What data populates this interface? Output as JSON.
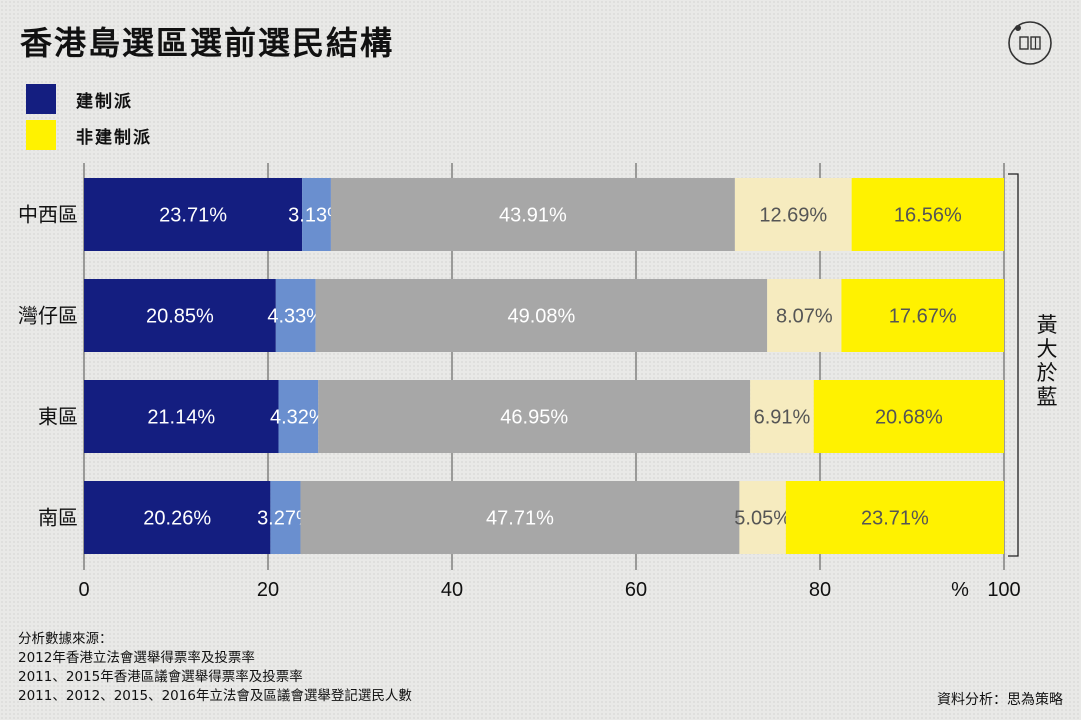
{
  "title": "香港島選區選前選民結構",
  "legend": [
    {
      "label": "建制派",
      "color": "#141e80"
    },
    {
      "label": "非建制派",
      "color": "#fff200"
    }
  ],
  "bracket_label": "黃大於藍",
  "sources": {
    "heading": "分析數據來源：",
    "lines": [
      "2012年香港立法會選舉得票率及投票率",
      "2011、2015年香港區議會選舉得票率及投票率",
      "2011、2012、2015、2016年立法會及區議會選舉登記選民人數"
    ]
  },
  "credit": "資料分析：思為策略",
  "chart_data": {
    "type": "bar",
    "orientation": "horizontal",
    "stacked": true,
    "title": "香港島選區選前選民結構",
    "xlabel": "%",
    "xlim": [
      0,
      100
    ],
    "xticks": [
      0,
      20,
      40,
      60,
      80,
      100
    ],
    "grid": true,
    "categories": [
      "中西區",
      "灣仔區",
      "東區",
      "南區"
    ],
    "series": [
      {
        "color": "#141e80",
        "label_color": "#ffffff",
        "values": [
          23.71,
          20.85,
          21.14,
          20.26
        ],
        "labels": [
          "23.71%",
          "20.85%",
          "21.14%",
          "20.26%"
        ]
      },
      {
        "color": "#6a8fcf",
        "label_color": "#ffffff",
        "values": [
          3.13,
          4.33,
          4.32,
          3.27
        ],
        "labels": [
          "3.13%",
          "4.33%",
          "4.32%",
          "3.27%"
        ]
      },
      {
        "color": "#a7a7a7",
        "label_color": "#ffffff",
        "values": [
          43.91,
          49.08,
          46.95,
          47.71
        ],
        "labels": [
          "43.91%",
          "49.08%",
          "46.95%",
          "47.71%"
        ]
      },
      {
        "color": "#f6ebbf",
        "label_color": "#555555",
        "values": [
          12.69,
          8.07,
          6.91,
          5.05
        ],
        "labels": [
          "12.69%",
          "8.07%",
          "6.91%",
          "5.05%"
        ]
      },
      {
        "color": "#fff200",
        "label_color": "#555555",
        "values": [
          16.56,
          17.67,
          20.68,
          23.71
        ],
        "labels": [
          "16.56%",
          "17.67%",
          "20.68%",
          "23.71%"
        ]
      }
    ]
  }
}
